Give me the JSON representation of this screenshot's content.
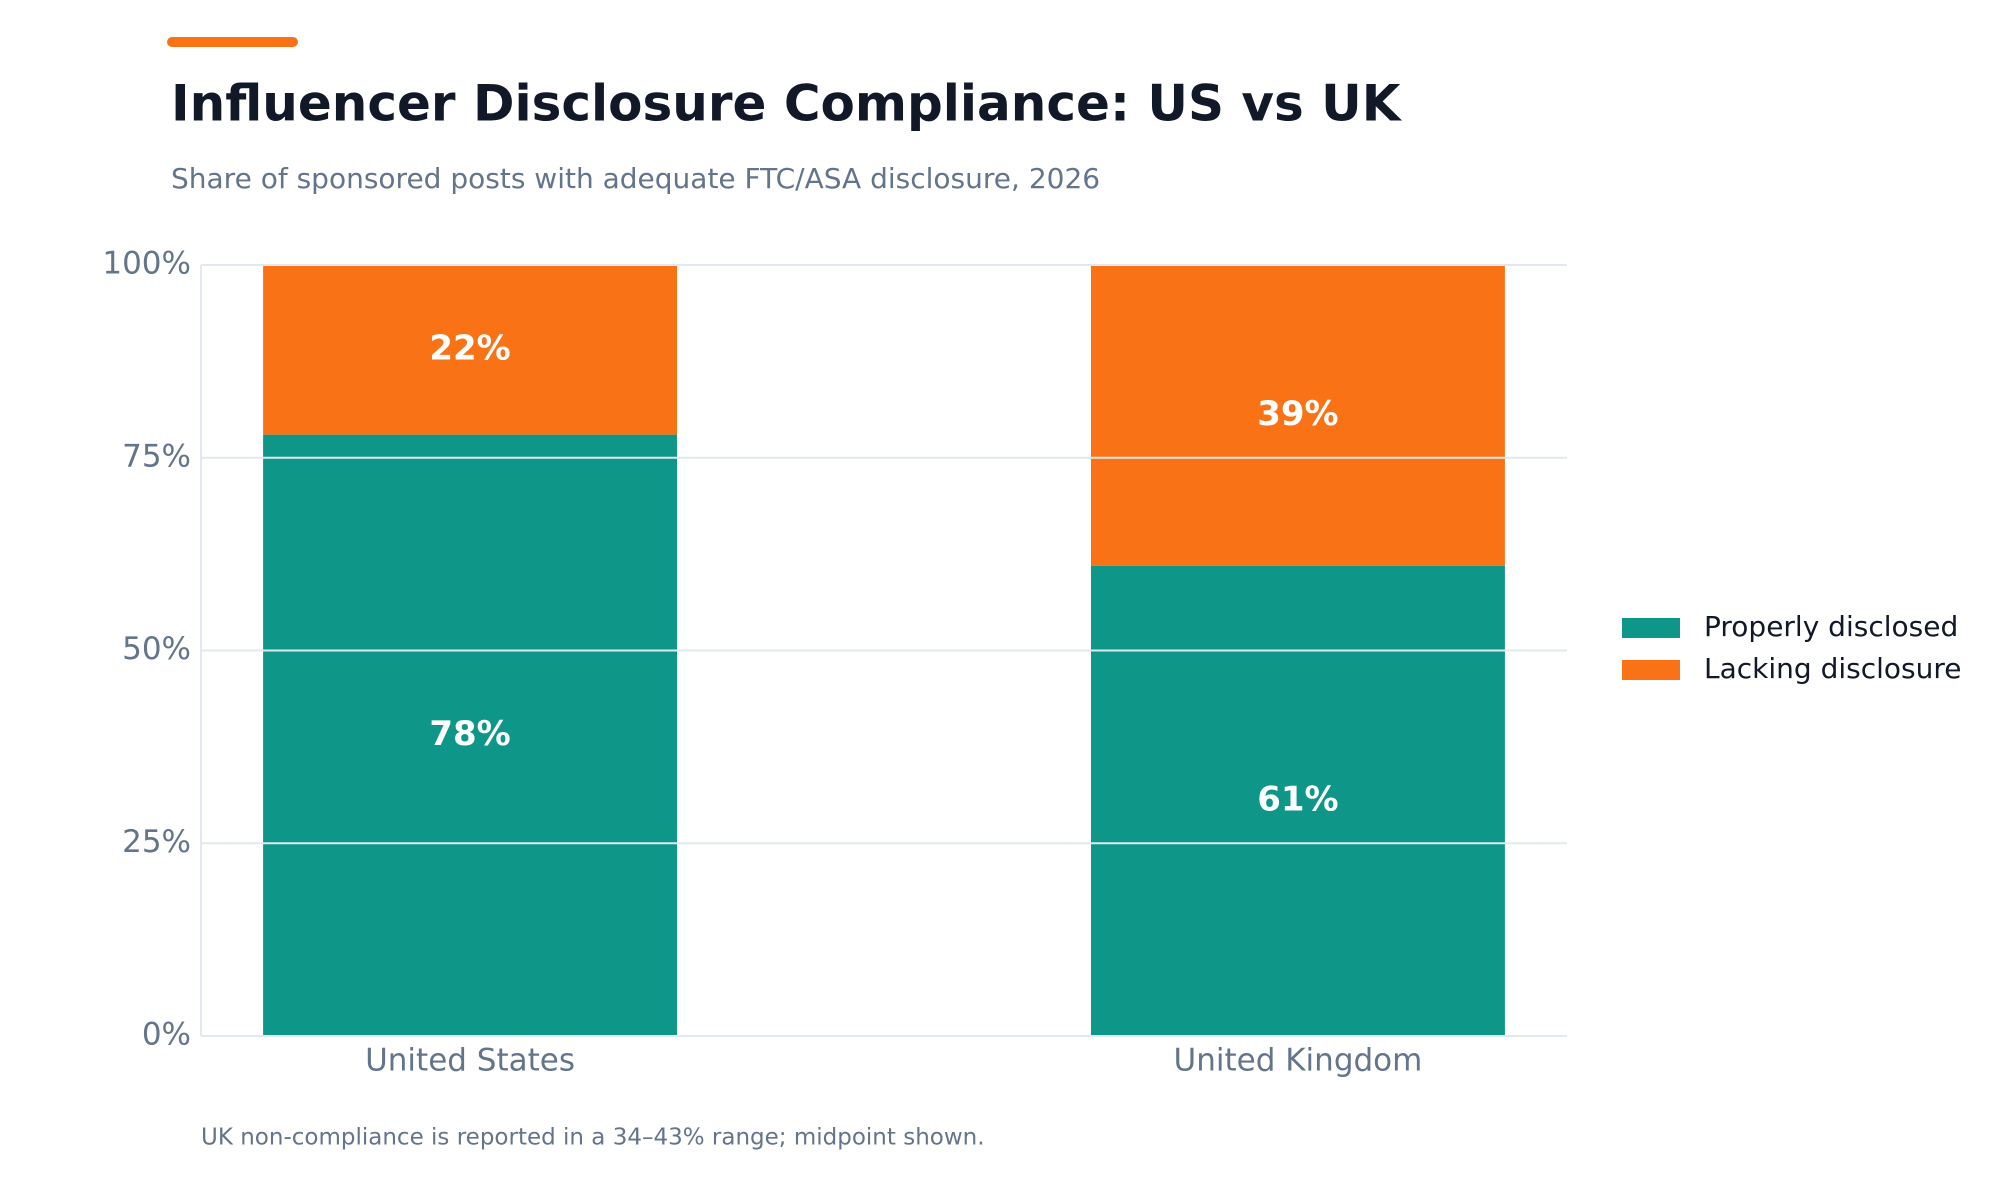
{
  "chart_data": {
    "type": "stacked_bar",
    "title": "Influencer Disclosure Compliance: US vs UK",
    "subtitle": "Share of sponsored posts with adequate FTC/ASA disclosure, 2026",
    "annotation": "UK non-compliance is reported in a 34–43% range; midpoint shown.",
    "categories": [
      "United States",
      "United Kingdom"
    ],
    "series": [
      {
        "name": "Properly disclosed",
        "color": "#0e9688",
        "values": [
          78,
          61
        ],
        "value_labels": [
          "78%",
          "61%"
        ]
      },
      {
        "name": "Lacking disclosure",
        "color": "#f97316",
        "values": [
          22,
          39
        ],
        "value_labels": [
          "22%",
          "39%"
        ]
      }
    ],
    "ylim": [
      0,
      100
    ],
    "yticks": [
      {
        "value": 0,
        "label": "0%"
      },
      {
        "value": 25,
        "label": "25%"
      },
      {
        "value": 50,
        "label": "50%"
      },
      {
        "value": 75,
        "label": "75%"
      },
      {
        "value": 100,
        "label": "100%"
      }
    ],
    "grid": true,
    "legend": "right"
  }
}
